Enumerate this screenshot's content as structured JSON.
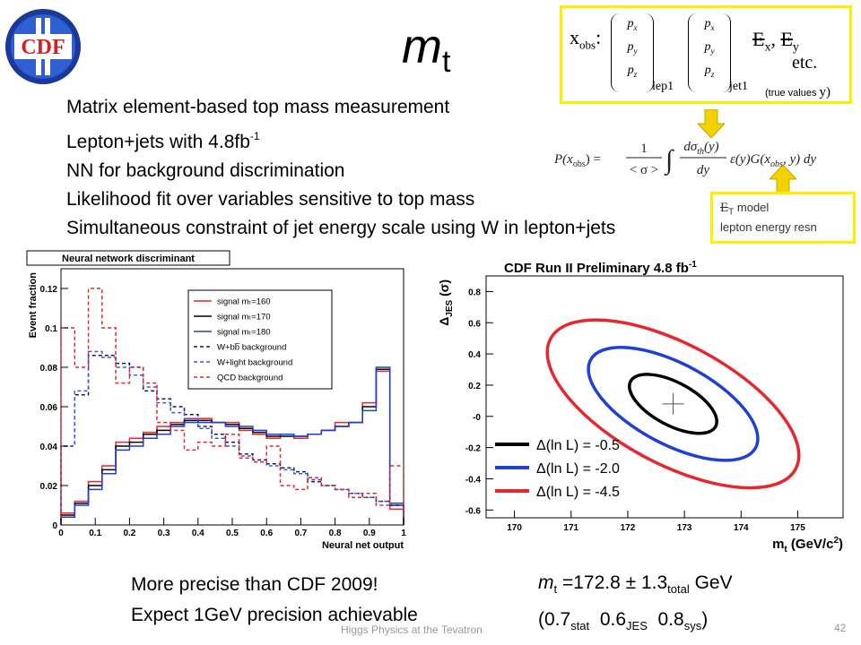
{
  "logo": {
    "text": "CDF"
  },
  "title": {
    "main": "m",
    "sub": "t"
  },
  "bullets": [
    {
      "text": "Matrix element-based top mass measurement",
      "sup": ""
    },
    {
      "text": "Lepton+jets with 4.8fb",
      "sup": "-1"
    },
    {
      "text": "NN for background discrimination",
      "sup": ""
    },
    {
      "text": "Likelihood fit over variables sensitive to top mass",
      "sup": ""
    },
    {
      "text": "Simultaneous constraint of jet energy scale using W in lepton+jets",
      "sup": ""
    }
  ],
  "xobs_box": {
    "xobs_label": "x",
    "xobs_sub": "obs",
    "colon": ":",
    "px": "p",
    "px_sub": "x",
    "py": "p",
    "py_sub": "y",
    "pz": "p",
    "pz_sub": "z",
    "lep_label": "lep1",
    "jet_label": "jet1",
    "met_x": "E",
    "met_x_sub": "x",
    "met_sep": ",",
    "met_y": "E",
    "met_y_sub": "y",
    "etc": "etc.",
    "true_values": "(true values ",
    "true_values_y": "y)"
  },
  "formula": {
    "lhs": "P(x",
    "lhs_sub": "obs",
    "lhs_end": ") =",
    "num": "1",
    "den": "< σ >",
    "integral": "∫",
    "dnum": "dσ",
    "dnum_sub": "th",
    "dnum_end": "(y)",
    "dden": "dy",
    "rest": "ε(y)G(x",
    "rest_sub": "obs",
    "rest_end": ", y) dy"
  },
  "model_box": {
    "line1_sym": "E",
    "line1_sub": "T",
    "line1_text": " model",
    "line2": "lepton energy resn"
  },
  "nn_chart": {
    "chart_data": {
      "type": "line",
      "title": "Neural network discriminant",
      "xlabel": "Neural net output",
      "ylabel": "Event fraction",
      "xlim": [
        0,
        1
      ],
      "ylim": [
        0,
        0.13
      ],
      "xticks": [
        "0",
        "0.1",
        "0.2",
        "0.3",
        "0.4",
        "0.5",
        "0.6",
        "0.7",
        "0.8",
        "0.9",
        "1"
      ],
      "yticks": [
        "0",
        "0.02",
        "0.04",
        "0.06",
        "0.08",
        "0.1",
        "0.12"
      ],
      "bins": 25,
      "legend_position": "top-right",
      "series": [
        {
          "name": "signal mₜ=160",
          "color": "#e8262d",
          "dash": "solid",
          "values": [
            0.006,
            0.012,
            0.022,
            0.03,
            0.042,
            0.044,
            0.047,
            0.05,
            0.052,
            0.054,
            0.054,
            0.052,
            0.052,
            0.048,
            0.046,
            0.044,
            0.046,
            0.044,
            0.046,
            0.048,
            0.052,
            0.052,
            0.062,
            0.078,
            0.008
          ]
        },
        {
          "name": "signal mₜ=170",
          "color": "#000000",
          "dash": "solid",
          "values": [
            0.005,
            0.011,
            0.02,
            0.028,
            0.04,
            0.042,
            0.046,
            0.048,
            0.051,
            0.053,
            0.053,
            0.052,
            0.051,
            0.049,
            0.047,
            0.045,
            0.045,
            0.045,
            0.046,
            0.048,
            0.05,
            0.052,
            0.06,
            0.079,
            0.01
          ]
        },
        {
          "name": "signal mₜ=180",
          "color": "#1f3fd6",
          "dash": "solid",
          "values": [
            0.004,
            0.01,
            0.018,
            0.026,
            0.038,
            0.04,
            0.044,
            0.046,
            0.05,
            0.052,
            0.052,
            0.052,
            0.05,
            0.05,
            0.048,
            0.046,
            0.046,
            0.045,
            0.046,
            0.048,
            0.05,
            0.052,
            0.058,
            0.08,
            0.011
          ]
        },
        {
          "name": "W+bb̅ background",
          "color": "#1a1a5a",
          "dash": "dashed",
          "values": [
            0.04,
            0.066,
            0.086,
            0.086,
            0.082,
            0.08,
            0.068,
            0.064,
            0.06,
            0.056,
            0.05,
            0.046,
            0.042,
            0.036,
            0.033,
            0.031,
            0.029,
            0.027,
            0.022,
            0.02,
            0.018,
            0.016,
            0.014,
            0.012,
            0.01
          ]
        },
        {
          "name": "W+light background",
          "color": "#3a5cd6",
          "dash": "dashed",
          "values": [
            0.04,
            0.068,
            0.088,
            0.085,
            0.08,
            0.076,
            0.07,
            0.062,
            0.057,
            0.054,
            0.049,
            0.044,
            0.04,
            0.035,
            0.032,
            0.03,
            0.028,
            0.026,
            0.023,
            0.02,
            0.018,
            0.016,
            0.014,
            0.012,
            0.01
          ]
        },
        {
          "name": "QCD background",
          "color": "#e8262d",
          "dash": "dashed",
          "values": [
            0.1,
            0.08,
            0.12,
            0.1,
            0.072,
            0.08,
            0.072,
            0.052,
            0.048,
            0.038,
            0.042,
            0.04,
            0.046,
            0.034,
            0.032,
            0.04,
            0.02,
            0.018,
            0.024,
            0.02,
            0.018,
            0.014,
            0.016,
            0.01,
            0.03
          ]
        }
      ]
    }
  },
  "cdf_chart": {
    "chart_data": {
      "type": "scatter",
      "title": "CDF Run II Preliminary 4.8 fb",
      "title_sup": "-1",
      "xlabel": "m",
      "xlabel_sub": "t",
      "xlabel_unit": "(GeV/c",
      "xlabel_unit_sup": "2",
      "xlabel_unit_end": ")",
      "ylabel": "Δ",
      "ylabel_sub": "JES",
      "ylabel_unit": "(σ)",
      "xlim": [
        169.5,
        175.8
      ],
      "ylim": [
        -0.65,
        0.9
      ],
      "xticks": [
        "170",
        "171",
        "172",
        "173",
        "174",
        "175"
      ],
      "yticks": [
        "-0.6",
        "-0.4",
        "-0.2",
        "-0",
        "0.2",
        "0.4",
        "0.6",
        "0.8"
      ],
      "best_fit": {
        "x": 172.8,
        "y": 0.08
      },
      "legend_position": "bottom-left",
      "contours": [
        {
          "name": "Δ(ln L) = -0.5",
          "color": "#000000",
          "cx": 172.8,
          "cy": 0.08,
          "rx": 0.85,
          "ry": 0.25
        },
        {
          "name": "Δ(ln L) = -2.0",
          "color": "#1f3fd6",
          "cx": 172.8,
          "cy": 0.08,
          "rx": 1.65,
          "ry": 0.47
        },
        {
          "name": "Δ(ln L) = -4.5",
          "color": "#e8262d",
          "cx": 172.8,
          "cy": 0.08,
          "rx": 2.45,
          "ry": 0.7
        }
      ]
    }
  },
  "left_note": {
    "line1": "More precise than CDF 2009!",
    "line2": "Expect 1GeV precision achievable"
  },
  "right_note": {
    "m": "m",
    "m_sub": "t",
    "eq": " =172.8 ± 1.3",
    "total_sub": "total",
    "gev": " GeV",
    "open": "(0.7",
    "stat_sub": "stat",
    "jes_val": "  0.6",
    "jes_sub": "JES",
    "sys_val": "  0.8",
    "sys_sub": "sys",
    "close": ")"
  },
  "footer": "Higgs Physics at the Tevatron",
  "page_number": "42"
}
